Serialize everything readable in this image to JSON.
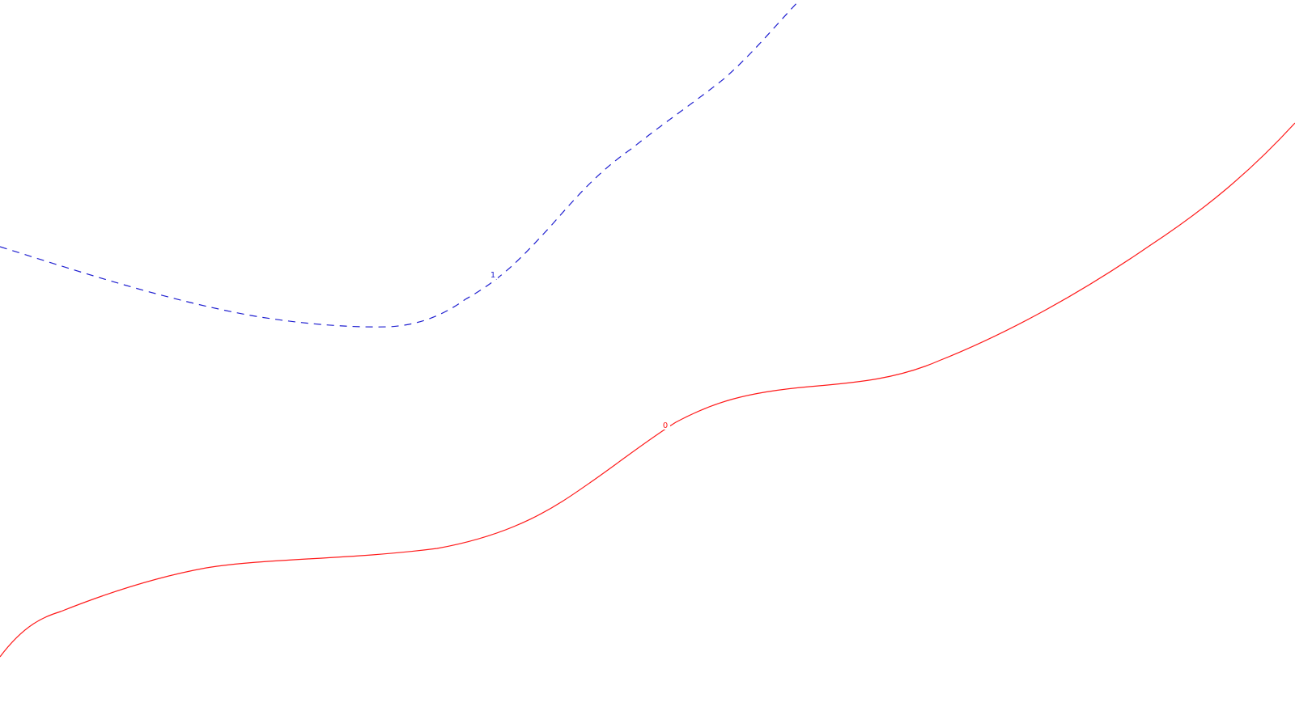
{
  "map": {
    "background_color": "#ffffff",
    "contours": [
      {
        "id": "contour-0",
        "label": "0",
        "color": "#ff1a1a",
        "line_style": "solid"
      },
      {
        "id": "contour-1",
        "label": "1",
        "color": "#1f1fd0",
        "line_style": "dashed"
      }
    ]
  }
}
